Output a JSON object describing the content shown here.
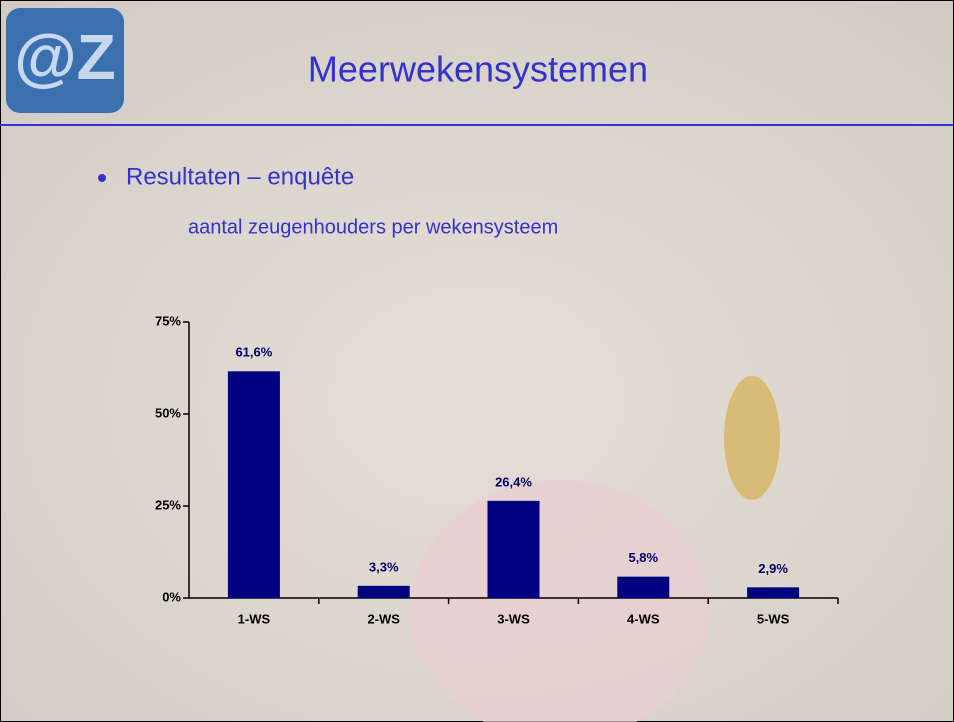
{
  "slide": {
    "logo": "@Z",
    "title": "Meerwekensystemen",
    "bullet": "Resultaten – enquête"
  },
  "chart_data": {
    "type": "bar",
    "title": "aantal zeugenhouders per wekensysteem",
    "categories": [
      "1-WS",
      "2-WS",
      "3-WS",
      "4-WS",
      "5-WS"
    ],
    "values": [
      61.6,
      3.3,
      26.4,
      5.8,
      2.9
    ],
    "value_labels": [
      "61,6%",
      "3,3%",
      "26,4%",
      "5,8%",
      "2,9%"
    ],
    "color": "#000080",
    "ylim": [
      0,
      75
    ],
    "yticks": [
      {
        "value": 0,
        "label": "0%"
      },
      {
        "value": 25,
        "label": "25%"
      },
      {
        "value": 50,
        "label": "50%"
      },
      {
        "value": 75,
        "label": "75%"
      }
    ]
  }
}
